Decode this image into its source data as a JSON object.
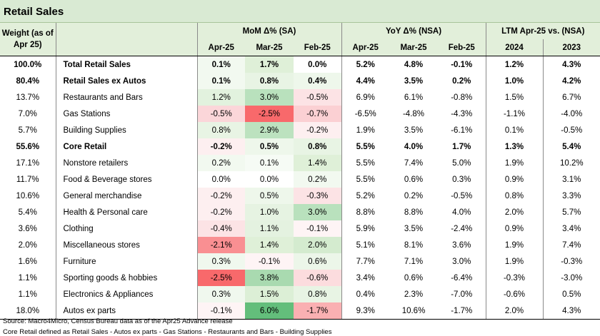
{
  "title": "Retail Sales",
  "headers": {
    "weight": [
      "Weight (as of",
      "Apr 25)"
    ],
    "mom": "MoM Δ% (SA)",
    "yoy": "YoY Δ% (NSA)",
    "ltm": "LTM Apr-25 vs. (NSA)",
    "mom_cols": [
      "Apr-25",
      "Mar-25",
      "Feb-25"
    ],
    "yoy_cols": [
      "Apr-25",
      "Mar-25",
      "Feb-25"
    ],
    "ltm_cols": [
      "2024",
      "2023"
    ]
  },
  "colors": {
    "header_bg": "#e2efda",
    "title_bg": "#d9ead3",
    "pos_light": "#c6e9c8",
    "pos_strong": "#63be7b",
    "neg_light": "#fbd0d3",
    "neg_strong": "#f8696b"
  },
  "rows": [
    {
      "weight": "100.0%",
      "category": "Total Retail Sales",
      "level": 0,
      "bold": true,
      "mom": [
        "0.1%",
        "1.7%",
        "0.0%"
      ],
      "yoy": [
        "5.2%",
        "4.8%",
        "-0.1%"
      ],
      "ltm": [
        "1.2%",
        "4.3%"
      ],
      "mom_shade": [
        "#f2f9f0",
        "#dff0d8",
        "#ffffff"
      ]
    },
    {
      "weight": "80.4%",
      "category": "Retail Sales ex Autos",
      "level": 1,
      "bold": true,
      "mom": [
        "0.1%",
        "0.8%",
        "0.4%"
      ],
      "yoy": [
        "4.4%",
        "3.5%",
        "0.2%"
      ],
      "ltm": [
        "1.0%",
        "4.2%"
      ],
      "mom_shade": [
        "#f2f9f0",
        "#e8f4e4",
        "#eef7eb"
      ]
    },
    {
      "weight": "13.7%",
      "category": "Restaurants and Bars",
      "level": 2,
      "bold": false,
      "mom": [
        "1.2%",
        "3.0%",
        "-0.5%"
      ],
      "yoy": [
        "6.9%",
        "6.1%",
        "-0.8%"
      ],
      "ltm": [
        "1.5%",
        "6.7%"
      ],
      "mom_shade": [
        "#e2f2de",
        "#b9e1bd",
        "#fce3e5"
      ]
    },
    {
      "weight": "7.0%",
      "category": "Gas Stations",
      "level": 2,
      "bold": false,
      "mom": [
        "-0.5%",
        "-2.5%",
        "-0.7%"
      ],
      "yoy": [
        "-6.5%",
        "-4.8%",
        "-4.3%"
      ],
      "ltm": [
        "-1.1%",
        "-4.0%"
      ],
      "mom_shade": [
        "#fbd6d9",
        "#f8696b",
        "#fbd0d3"
      ]
    },
    {
      "weight": "5.7%",
      "category": "Building Supplies",
      "level": 2,
      "bold": false,
      "mom": [
        "0.8%",
        "2.9%",
        "-0.2%"
      ],
      "yoy": [
        "1.9%",
        "3.5%",
        "-6.1%"
      ],
      "ltm": [
        "0.1%",
        "-0.5%"
      ],
      "mom_shade": [
        "#e8f4e4",
        "#bce2bf",
        "#fdeff0"
      ]
    },
    {
      "weight": "55.6%",
      "category": "Core Retail",
      "level": 1,
      "bold": true,
      "mom": [
        "-0.2%",
        "0.5%",
        "0.8%"
      ],
      "yoy": [
        "5.5%",
        "4.0%",
        "1.7%"
      ],
      "ltm": [
        "1.3%",
        "5.4%"
      ],
      "mom_shade": [
        "#fdeff0",
        "#eef7eb",
        "#e8f4e4"
      ]
    },
    {
      "weight": "17.1%",
      "category": "Nonstore retailers",
      "level": 2,
      "bold": false,
      "mom": [
        "0.2%",
        "0.1%",
        "1.4%"
      ],
      "yoy": [
        "5.5%",
        "7.4%",
        "5.0%"
      ],
      "ltm": [
        "1.9%",
        "10.2%"
      ],
      "mom_shade": [
        "#f2f9f0",
        "#f6fbf5",
        "#dff0d8"
      ]
    },
    {
      "weight": "11.7%",
      "category": "Food & Beverage stores",
      "level": 2,
      "bold": false,
      "mom": [
        "0.0%",
        "0.0%",
        "0.2%"
      ],
      "yoy": [
        "5.5%",
        "0.6%",
        "0.3%"
      ],
      "ltm": [
        "0.9%",
        "3.1%"
      ],
      "mom_shade": [
        "#ffffff",
        "#ffffff",
        "#f2f9f0"
      ]
    },
    {
      "weight": "10.6%",
      "category": "General merchandise",
      "level": 2,
      "bold": false,
      "mom": [
        "-0.2%",
        "0.5%",
        "-0.3%"
      ],
      "yoy": [
        "5.2%",
        "0.2%",
        "-0.5%"
      ],
      "ltm": [
        "0.8%",
        "3.3%"
      ],
      "mom_shade": [
        "#fdeff0",
        "#eef7eb",
        "#fce3e5"
      ]
    },
    {
      "weight": "5.4%",
      "category": "Health & Personal care",
      "level": 2,
      "bold": false,
      "mom": [
        "-0.2%",
        "1.0%",
        "3.0%"
      ],
      "yoy": [
        "8.8%",
        "8.8%",
        "4.0%"
      ],
      "ltm": [
        "2.0%",
        "5.7%"
      ],
      "mom_shade": [
        "#fdeff0",
        "#e6f3e2",
        "#b9e1bd"
      ]
    },
    {
      "weight": "3.6%",
      "category": "Clothing",
      "level": 2,
      "bold": false,
      "mom": [
        "-0.4%",
        "1.1%",
        "-0.1%"
      ],
      "yoy": [
        "5.9%",
        "3.5%",
        "-2.4%"
      ],
      "ltm": [
        "0.9%",
        "3.4%"
      ],
      "mom_shade": [
        "#fce3e5",
        "#e4f2e0",
        "#fef4f5"
      ]
    },
    {
      "weight": "2.0%",
      "category": "Miscellaneous stores",
      "level": 2,
      "bold": false,
      "mom": [
        "-2.1%",
        "1.4%",
        "2.0%"
      ],
      "yoy": [
        "5.1%",
        "8.1%",
        "3.6%"
      ],
      "ltm": [
        "1.9%",
        "7.4%"
      ],
      "mom_shade": [
        "#f98f92",
        "#dff0d8",
        "#d4ebcf"
      ]
    },
    {
      "weight": "1.6%",
      "category": "Furniture",
      "level": 2,
      "bold": false,
      "mom": [
        "0.3%",
        "-0.1%",
        "0.6%"
      ],
      "yoy": [
        "7.7%",
        "7.1%",
        "3.0%"
      ],
      "ltm": [
        "1.9%",
        "-0.3%"
      ],
      "mom_shade": [
        "#f0f8ee",
        "#fef4f5",
        "#ecf6e9"
      ]
    },
    {
      "weight": "1.1%",
      "category": "Sporting goods & hobbies",
      "level": 2,
      "bold": false,
      "mom": [
        "-2.5%",
        "3.8%",
        "-0.6%"
      ],
      "yoy": [
        "3.4%",
        "0.6%",
        "-6.4%"
      ],
      "ltm": [
        "-0.3%",
        "-3.0%"
      ],
      "mom_shade": [
        "#f8696b",
        "#a9dab0",
        "#fcdcde"
      ]
    },
    {
      "weight": "1.1%",
      "category": "Electronics & Appliances",
      "level": 2,
      "bold": false,
      "mom": [
        "0.3%",
        "1.5%",
        "0.8%"
      ],
      "yoy": [
        "0.4%",
        "2.3%",
        "-7.0%"
      ],
      "ltm": [
        "-0.6%",
        "0.5%"
      ],
      "mom_shade": [
        "#f0f8ee",
        "#dcefd6",
        "#e8f4e4"
      ]
    },
    {
      "weight": "18.0%",
      "category": "Autos ex parts",
      "level": 1,
      "bold": false,
      "mom": [
        "-0.1%",
        "6.0%",
        "-1.7%"
      ],
      "yoy": [
        "9.3%",
        "10.6%",
        "-1.7%"
      ],
      "ltm": [
        "2.0%",
        "4.3%"
      ],
      "mom_shade": [
        "#fef4f5",
        "#63be7b",
        "#fab0b2"
      ]
    }
  ],
  "footer": {
    "source": "Source: Macro4Micro, Census Bureau    data as of the Apr25 Advance release",
    "note": "Core Retail defined as Retail Sales - Autos ex parts - Gas Stations - Restaurants and Bars - Building Supplies"
  }
}
